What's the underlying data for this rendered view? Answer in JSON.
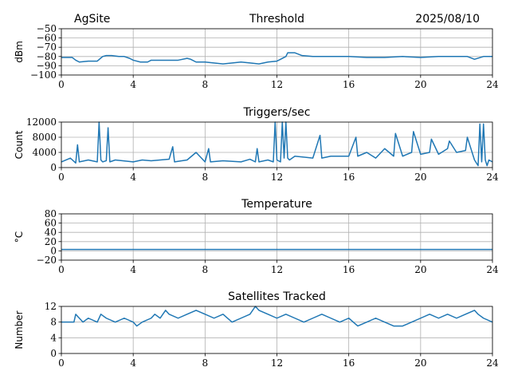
{
  "header": {
    "site": "AgSite",
    "date": "2025/08/10"
  },
  "chart_data": [
    {
      "type": "line",
      "title": "Threshold",
      "ylabel": "dBm",
      "xlim": [
        0,
        24
      ],
      "ylim": [
        -100,
        -50
      ],
      "xticks": [
        0,
        4,
        8,
        12,
        16,
        20,
        24
      ],
      "yticks": [
        -100,
        -90,
        -80,
        -70,
        -60,
        -50
      ],
      "ytick_labels": [
        "−100",
        "−90",
        "−80",
        "−70",
        "−60",
        "−50"
      ],
      "grid": true,
      "color": "#1f77b4",
      "series": [
        {
          "x": [
            0,
            0.6,
            0.8,
            1.0,
            1.5,
            2.0,
            2.3,
            2.5,
            2.8,
            3.2,
            3.5,
            3.8,
            4.0,
            4.4,
            4.8,
            5.0,
            5.5,
            6.0,
            6.5,
            7.0,
            7.2,
            7.5,
            8.0,
            9.0,
            10.0,
            10.5,
            11.0,
            11.5,
            12.0,
            12.2,
            12.5,
            12.6,
            13.0,
            13.4,
            14.0,
            15.0,
            16.0,
            17.0,
            18.0,
            19.0,
            20.0,
            21.0,
            22.0,
            22.6,
            23.0,
            23.5,
            24.0
          ],
          "y": [
            -81,
            -81,
            -84,
            -86,
            -85,
            -85,
            -80,
            -79,
            -79,
            -80,
            -80,
            -82,
            -84,
            -86,
            -86,
            -84,
            -84,
            -84,
            -84,
            -82,
            -83,
            -86,
            -86,
            -88,
            -86,
            -87,
            -88,
            -86,
            -85,
            -83,
            -80,
            -76,
            -76,
            -79,
            -80,
            -80,
            -80,
            -81,
            -81,
            -80,
            -81,
            -80,
            -80,
            -80,
            -83,
            -80,
            -80
          ]
        }
      ]
    },
    {
      "type": "line",
      "title": "Triggers/sec",
      "ylabel": "Count",
      "xlim": [
        0,
        24
      ],
      "ylim": [
        0,
        12000
      ],
      "xticks": [
        0,
        4,
        8,
        12,
        16,
        20,
        24
      ],
      "yticks": [
        0,
        4000,
        8000,
        12000
      ],
      "grid": true,
      "color": "#1f77b4",
      "series": [
        {
          "x": [
            0,
            0.5,
            0.8,
            0.9,
            1.0,
            1.5,
            2.0,
            2.1,
            2.2,
            2.3,
            2.5,
            2.6,
            2.7,
            3.0,
            4.0,
            4.5,
            5.0,
            6.0,
            6.2,
            6.3,
            7.0,
            7.5,
            8.0,
            8.2,
            8.3,
            9.0,
            10.0,
            10.5,
            10.8,
            10.9,
            11.0,
            11.5,
            11.8,
            11.9,
            12.0,
            12.2,
            12.3,
            12.4,
            12.5,
            12.6,
            12.7,
            13.0,
            14.0,
            14.4,
            14.5,
            15.0,
            16.0,
            16.4,
            16.5,
            17.0,
            17.5,
            18.0,
            18.5,
            18.6,
            19.0,
            19.5,
            19.6,
            20.0,
            20.5,
            20.6,
            21.0,
            21.5,
            21.6,
            22.0,
            22.5,
            22.6,
            23.0,
            23.2,
            23.3,
            23.4,
            23.5,
            23.6,
            23.7,
            23.8,
            24.0
          ],
          "y": [
            1500,
            2500,
            1200,
            6000,
            1500,
            2000,
            1500,
            12000,
            2000,
            1500,
            1800,
            10500,
            1500,
            2000,
            1500,
            2000,
            1800,
            2200,
            5500,
            1500,
            2000,
            4000,
            1500,
            5000,
            1500,
            1800,
            1500,
            2200,
            1500,
            5000,
            1500,
            2000,
            1500,
            12000,
            2000,
            1500,
            12000,
            2500,
            12000,
            2500,
            2000,
            3000,
            2500,
            8500,
            2500,
            3000,
            3000,
            8000,
            3000,
            4000,
            2500,
            5000,
            3000,
            9000,
            3000,
            4000,
            9500,
            3500,
            4000,
            7500,
            3500,
            5000,
            7000,
            4000,
            4500,
            8000,
            2000,
            500,
            11500,
            1500,
            11500,
            2000,
            500,
            2000,
            1500
          ]
        }
      ]
    },
    {
      "type": "line",
      "title": "Temperature",
      "ylabel": "°C",
      "xlim": [
        0,
        24
      ],
      "ylim": [
        -20,
        80
      ],
      "xticks": [
        0,
        4,
        8,
        12,
        16,
        20,
        24
      ],
      "yticks": [
        -20,
        0,
        20,
        40,
        60,
        80
      ],
      "ytick_labels": [
        "−20",
        "0",
        "20",
        "40",
        "60",
        "80"
      ],
      "grid": true,
      "color": "#1f77b4",
      "series": [
        {
          "x": [
            0,
            24
          ],
          "y": [
            3,
            3
          ]
        }
      ]
    },
    {
      "type": "line",
      "title": "Satellites Tracked",
      "ylabel": "Number",
      "xlim": [
        0,
        24
      ],
      "ylim": [
        0,
        12
      ],
      "xticks": [
        0,
        4,
        8,
        12,
        16,
        20,
        24
      ],
      "yticks": [
        0,
        4,
        8,
        12
      ],
      "grid": true,
      "color": "#1f77b4",
      "series": [
        {
          "x": [
            0,
            0.7,
            0.8,
            1.0,
            1.2,
            1.5,
            2.0,
            2.2,
            2.5,
            3.0,
            3.5,
            4.0,
            4.2,
            4.5,
            5.0,
            5.2,
            5.5,
            5.8,
            6.0,
            6.5,
            7.0,
            7.5,
            8.0,
            8.5,
            9.0,
            9.5,
            10.0,
            10.5,
            10.8,
            11.0,
            11.5,
            12.0,
            12.5,
            13.0,
            13.5,
            14.0,
            14.5,
            15.0,
            15.5,
            16.0,
            16.5,
            17.0,
            17.5,
            18.0,
            18.5,
            19.0,
            19.5,
            20.0,
            20.5,
            21.0,
            21.5,
            22.0,
            22.5,
            23.0,
            23.2,
            23.5,
            24.0
          ],
          "y": [
            8,
            8,
            10,
            9,
            8,
            9,
            8,
            10,
            9,
            8,
            9,
            8,
            7,
            8,
            9,
            10,
            9,
            11,
            10,
            9,
            10,
            11,
            10,
            9,
            10,
            8,
            9,
            10,
            12,
            11,
            10,
            9,
            10,
            9,
            8,
            9,
            10,
            9,
            8,
            9,
            7,
            8,
            9,
            8,
            7,
            7,
            8,
            9,
            10,
            9,
            10,
            9,
            10,
            11,
            10,
            9,
            8
          ]
        }
      ]
    }
  ]
}
